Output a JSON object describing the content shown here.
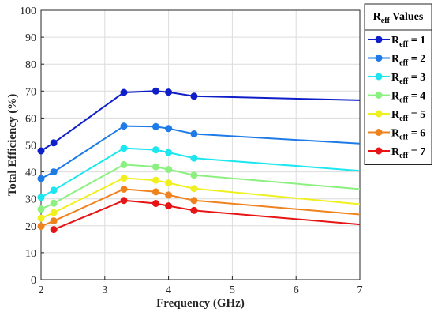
{
  "chart_data": {
    "type": "line",
    "xlabel": "Frequency (GHz)",
    "ylabel": "Total Efficiency (%)",
    "xlim": [
      2,
      7
    ],
    "ylim": [
      0,
      100
    ],
    "xticks": [
      2,
      3,
      4,
      5,
      6,
      7
    ],
    "yticks": [
      0,
      10,
      20,
      30,
      40,
      50,
      60,
      70,
      80,
      90,
      100
    ],
    "grid": true,
    "legend_position": "top-right outside",
    "legend": {
      "title_main": "R",
      "title_sub": "eff",
      "title_rest": " Values"
    },
    "series": [
      {
        "name_main": "R",
        "name_sub": "eff",
        "name_rest": " = 1",
        "color": "#0f1ec8",
        "x": [
          2.0,
          2.2,
          3.3,
          3.8,
          4.0,
          4.4,
          7.0
        ],
        "y": [
          47.8,
          50.8,
          69.5,
          70.0,
          69.6,
          68.1,
          66.6
        ],
        "markers": [
          0,
          1,
          2,
          3,
          4,
          5
        ]
      },
      {
        "name_main": "R",
        "name_sub": "eff",
        "name_rest": " = 2",
        "color": "#1e7ae6",
        "x": [
          2.0,
          2.2,
          3.3,
          3.8,
          4.0,
          4.4,
          7.0
        ],
        "y": [
          37.5,
          40.0,
          57.0,
          56.8,
          56.1,
          54.1,
          50.5
        ],
        "markers": [
          0,
          1,
          2,
          3,
          4,
          5
        ]
      },
      {
        "name_main": "R",
        "name_sub": "eff",
        "name_rest": " = 3",
        "color": "#1ee6f0",
        "x": [
          2.0,
          2.2,
          3.3,
          3.8,
          4.0,
          4.4,
          7.0
        ],
        "y": [
          30.6,
          33.2,
          48.8,
          48.2,
          47.2,
          45.1,
          40.4
        ],
        "markers": [
          0,
          1,
          2,
          3,
          4,
          5
        ]
      },
      {
        "name_main": "R",
        "name_sub": "eff",
        "name_rest": " = 4",
        "color": "#8cf080",
        "x": [
          2.0,
          2.2,
          3.3,
          3.8,
          4.0,
          4.4,
          7.0
        ],
        "y": [
          26.2,
          28.4,
          42.7,
          41.9,
          40.9,
          38.8,
          33.6
        ],
        "markers": [
          0,
          1,
          2,
          3,
          4,
          5
        ]
      },
      {
        "name_main": "R",
        "name_sub": "eff",
        "name_rest": " = 5",
        "color": "#f0f01e",
        "x": [
          2.0,
          2.2,
          3.3,
          3.8,
          4.0,
          4.4,
          7.0
        ],
        "y": [
          22.8,
          24.9,
          37.7,
          36.9,
          35.9,
          33.8,
          28.0
        ],
        "markers": [
          0,
          1,
          2,
          3,
          4,
          5
        ]
      },
      {
        "name_main": "R",
        "name_sub": "eff",
        "name_rest": " = 6",
        "color": "#f0821e",
        "x": [
          2.0,
          2.2,
          3.3,
          3.8,
          4.0,
          4.4,
          7.0
        ],
        "y": [
          19.8,
          21.8,
          33.6,
          32.6,
          31.4,
          29.4,
          24.2
        ],
        "markers": [
          0,
          1,
          2,
          3,
          4,
          5
        ]
      },
      {
        "name_main": "R",
        "name_sub": "eff",
        "name_rest": " = 7",
        "color": "#e61414",
        "x": [
          2.2,
          3.3,
          3.8,
          4.0,
          4.4,
          7.0
        ],
        "y": [
          18.6,
          29.4,
          28.3,
          27.4,
          25.7,
          20.5
        ],
        "markers": [
          0,
          1,
          2,
          3,
          4
        ]
      }
    ]
  }
}
